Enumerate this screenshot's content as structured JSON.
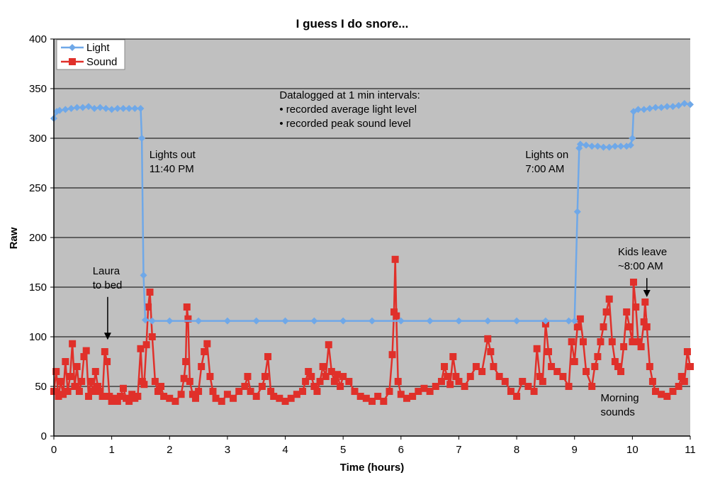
{
  "chart_data": {
    "type": "line",
    "title": "I guess I do snore...",
    "xlabel": "Time (hours)",
    "ylabel": "Raw",
    "xlim": [
      0,
      11
    ],
    "ylim": [
      0,
      400
    ],
    "xticks": [
      "0",
      "1",
      "2",
      "3",
      "4",
      "5",
      "6",
      "7",
      "8",
      "9",
      "10",
      "11"
    ],
    "yticks": [
      "0",
      "50",
      "100",
      "150",
      "200",
      "250",
      "300",
      "350",
      "400"
    ],
    "grid": "horizontal",
    "background": "#c0c0c0",
    "legend_position": "top-left",
    "series": [
      {
        "name": "Light",
        "color": "#6fa8e8",
        "marker": "diamond",
        "points": [
          [
            0.0,
            320
          ],
          [
            0.05,
            327
          ],
          [
            0.1,
            328
          ],
          [
            0.2,
            329
          ],
          [
            0.3,
            330
          ],
          [
            0.4,
            331
          ],
          [
            0.5,
            331
          ],
          [
            0.6,
            332
          ],
          [
            0.7,
            330
          ],
          [
            0.8,
            331
          ],
          [
            0.9,
            330
          ],
          [
            1.0,
            329
          ],
          [
            1.1,
            330
          ],
          [
            1.2,
            330
          ],
          [
            1.3,
            330
          ],
          [
            1.4,
            330
          ],
          [
            1.5,
            330
          ],
          [
            1.52,
            300
          ],
          [
            1.55,
            162
          ],
          [
            1.58,
            117
          ],
          [
            1.7,
            116
          ],
          [
            2.0,
            116
          ],
          [
            2.5,
            116
          ],
          [
            3.0,
            116
          ],
          [
            3.5,
            116
          ],
          [
            4.0,
            116
          ],
          [
            4.5,
            116
          ],
          [
            5.0,
            116
          ],
          [
            5.5,
            116
          ],
          [
            6.0,
            116
          ],
          [
            6.5,
            116
          ],
          [
            7.0,
            116
          ],
          [
            7.5,
            116
          ],
          [
            8.0,
            116
          ],
          [
            8.5,
            116
          ],
          [
            8.9,
            116
          ],
          [
            9.0,
            116
          ],
          [
            9.05,
            226
          ],
          [
            9.08,
            290
          ],
          [
            9.1,
            294
          ],
          [
            9.2,
            293
          ],
          [
            9.3,
            292
          ],
          [
            9.4,
            292
          ],
          [
            9.5,
            291
          ],
          [
            9.6,
            291
          ],
          [
            9.7,
            292
          ],
          [
            9.8,
            292
          ],
          [
            9.9,
            292
          ],
          [
            9.97,
            293
          ],
          [
            10.0,
            300
          ],
          [
            10.02,
            327
          ],
          [
            10.1,
            329
          ],
          [
            10.2,
            329
          ],
          [
            10.3,
            330
          ],
          [
            10.4,
            331
          ],
          [
            10.5,
            331
          ],
          [
            10.6,
            332
          ],
          [
            10.7,
            332
          ],
          [
            10.8,
            333
          ],
          [
            10.9,
            335
          ],
          [
            11.0,
            334
          ]
        ]
      },
      {
        "name": "Sound",
        "color": "#e0302a",
        "marker": "square",
        "points": [
          [
            0.0,
            45
          ],
          [
            0.04,
            65
          ],
          [
            0.08,
            40
          ],
          [
            0.12,
            55
          ],
          [
            0.16,
            42
          ],
          [
            0.2,
            75
          ],
          [
            0.24,
            45
          ],
          [
            0.28,
            60
          ],
          [
            0.32,
            93
          ],
          [
            0.36,
            50
          ],
          [
            0.4,
            70
          ],
          [
            0.44,
            45
          ],
          [
            0.48,
            55
          ],
          [
            0.52,
            80
          ],
          [
            0.56,
            86
          ],
          [
            0.6,
            40
          ],
          [
            0.64,
            55
          ],
          [
            0.68,
            45
          ],
          [
            0.72,
            65
          ],
          [
            0.76,
            50
          ],
          [
            0.8,
            45
          ],
          [
            0.84,
            40
          ],
          [
            0.88,
            85
          ],
          [
            0.92,
            75
          ],
          [
            0.96,
            40
          ],
          [
            1.0,
            35
          ],
          [
            1.05,
            38
          ],
          [
            1.1,
            35
          ],
          [
            1.15,
            40
          ],
          [
            1.2,
            48
          ],
          [
            1.25,
            38
          ],
          [
            1.3,
            35
          ],
          [
            1.35,
            42
          ],
          [
            1.4,
            38
          ],
          [
            1.45,
            40
          ],
          [
            1.5,
            88
          ],
          [
            1.53,
            55
          ],
          [
            1.56,
            52
          ],
          [
            1.6,
            92
          ],
          [
            1.63,
            130
          ],
          [
            1.66,
            145
          ],
          [
            1.7,
            100
          ],
          [
            1.75,
            55
          ],
          [
            1.8,
            45
          ],
          [
            1.85,
            50
          ],
          [
            1.9,
            40
          ],
          [
            2.0,
            38
          ],
          [
            2.1,
            35
          ],
          [
            2.2,
            42
          ],
          [
            2.25,
            58
          ],
          [
            2.28,
            75
          ],
          [
            2.3,
            130
          ],
          [
            2.32,
            118
          ],
          [
            2.35,
            55
          ],
          [
            2.4,
            42
          ],
          [
            2.45,
            38
          ],
          [
            2.5,
            45
          ],
          [
            2.55,
            70
          ],
          [
            2.6,
            85
          ],
          [
            2.65,
            93
          ],
          [
            2.7,
            60
          ],
          [
            2.75,
            45
          ],
          [
            2.8,
            38
          ],
          [
            2.9,
            35
          ],
          [
            3.0,
            42
          ],
          [
            3.1,
            38
          ],
          [
            3.2,
            45
          ],
          [
            3.3,
            50
          ],
          [
            3.35,
            60
          ],
          [
            3.4,
            45
          ],
          [
            3.5,
            40
          ],
          [
            3.6,
            50
          ],
          [
            3.65,
            60
          ],
          [
            3.7,
            80
          ],
          [
            3.75,
            45
          ],
          [
            3.8,
            40
          ],
          [
            3.9,
            38
          ],
          [
            4.0,
            35
          ],
          [
            4.1,
            38
          ],
          [
            4.2,
            42
          ],
          [
            4.3,
            45
          ],
          [
            4.35,
            55
          ],
          [
            4.4,
            65
          ],
          [
            4.45,
            60
          ],
          [
            4.5,
            50
          ],
          [
            4.55,
            45
          ],
          [
            4.6,
            55
          ],
          [
            4.65,
            70
          ],
          [
            4.7,
            60
          ],
          [
            4.75,
            92
          ],
          [
            4.8,
            65
          ],
          [
            4.85,
            55
          ],
          [
            4.9,
            62
          ],
          [
            4.95,
            50
          ],
          [
            5.0,
            60
          ],
          [
            5.1,
            55
          ],
          [
            5.2,
            45
          ],
          [
            5.3,
            40
          ],
          [
            5.4,
            38
          ],
          [
            5.5,
            35
          ],
          [
            5.6,
            40
          ],
          [
            5.7,
            35
          ],
          [
            5.8,
            45
          ],
          [
            5.85,
            82
          ],
          [
            5.88,
            125
          ],
          [
            5.9,
            178
          ],
          [
            5.92,
            121
          ],
          [
            5.95,
            55
          ],
          [
            6.0,
            42
          ],
          [
            6.1,
            38
          ],
          [
            6.2,
            40
          ],
          [
            6.3,
            45
          ],
          [
            6.4,
            48
          ],
          [
            6.5,
            45
          ],
          [
            6.6,
            50
          ],
          [
            6.7,
            55
          ],
          [
            6.75,
            70
          ],
          [
            6.8,
            60
          ],
          [
            6.85,
            52
          ],
          [
            6.9,
            80
          ],
          [
            6.95,
            60
          ],
          [
            7.0,
            55
          ],
          [
            7.1,
            50
          ],
          [
            7.2,
            60
          ],
          [
            7.3,
            70
          ],
          [
            7.4,
            65
          ],
          [
            7.5,
            98
          ],
          [
            7.55,
            85
          ],
          [
            7.6,
            70
          ],
          [
            7.7,
            60
          ],
          [
            7.8,
            55
          ],
          [
            7.9,
            45
          ],
          [
            8.0,
            40
          ],
          [
            8.1,
            55
          ],
          [
            8.2,
            50
          ],
          [
            8.3,
            45
          ],
          [
            8.35,
            88
          ],
          [
            8.4,
            60
          ],
          [
            8.45,
            55
          ],
          [
            8.5,
            113
          ],
          [
            8.55,
            85
          ],
          [
            8.6,
            70
          ],
          [
            8.7,
            65
          ],
          [
            8.8,
            60
          ],
          [
            8.9,
            50
          ],
          [
            8.95,
            95
          ],
          [
            9.0,
            75
          ],
          [
            9.05,
            110
          ],
          [
            9.1,
            118
          ],
          [
            9.15,
            95
          ],
          [
            9.2,
            65
          ],
          [
            9.3,
            50
          ],
          [
            9.35,
            70
          ],
          [
            9.4,
            80
          ],
          [
            9.45,
            95
          ],
          [
            9.5,
            110
          ],
          [
            9.55,
            125
          ],
          [
            9.6,
            138
          ],
          [
            9.65,
            95
          ],
          [
            9.7,
            75
          ],
          [
            9.75,
            70
          ],
          [
            9.8,
            65
          ],
          [
            9.85,
            90
          ],
          [
            9.9,
            125
          ],
          [
            9.95,
            110
          ],
          [
            10.0,
            95
          ],
          [
            10.02,
            155
          ],
          [
            10.06,
            130
          ],
          [
            10.1,
            95
          ],
          [
            10.15,
            90
          ],
          [
            10.2,
            115
          ],
          [
            10.22,
            135
          ],
          [
            10.25,
            110
          ],
          [
            10.3,
            70
          ],
          [
            10.35,
            55
          ],
          [
            10.4,
            45
          ],
          [
            10.5,
            42
          ],
          [
            10.6,
            40
          ],
          [
            10.7,
            45
          ],
          [
            10.8,
            50
          ],
          [
            10.85,
            60
          ],
          [
            10.9,
            55
          ],
          [
            10.95,
            85
          ],
          [
            11.0,
            70
          ]
        ]
      }
    ],
    "annotations": [
      {
        "lines": [
          "Datalogged at 1 min intervals:",
          "• recorded average light level",
          "• recorded peak sound level"
        ],
        "x": 3.9,
        "y": 340
      },
      {
        "lines": [
          "Lights out",
          "11:40 PM"
        ],
        "x": 1.65,
        "y": 280
      },
      {
        "lines": [
          "Lights on",
          "7:00 AM"
        ],
        "x": 8.15,
        "y": 280
      },
      {
        "lines": [
          "Laura",
          "to bed"
        ],
        "x": 0.67,
        "y": 163,
        "arrow_to": [
          0.93,
          97
        ]
      },
      {
        "lines": [
          "Kids leave",
          "~8:00 AM"
        ],
        "x": 9.75,
        "y": 182,
        "arrow_to": [
          10.25,
          140
        ]
      },
      {
        "lines": [
          "Morning",
          "sounds"
        ],
        "x": 9.45,
        "y": 35
      }
    ]
  }
}
